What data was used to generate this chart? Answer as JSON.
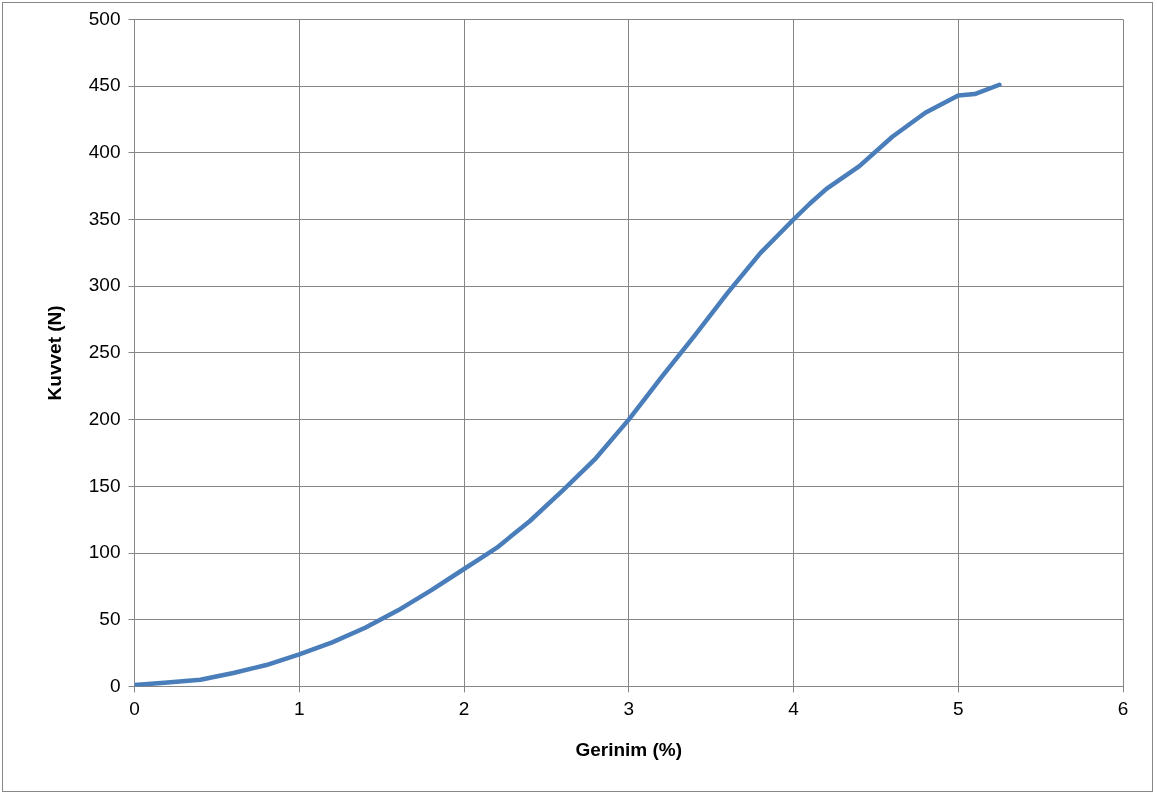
{
  "chart_data": {
    "type": "line",
    "xlabel": "Gerinim (%)",
    "ylabel": "Kuvvet (N)",
    "xlim": [
      0,
      6
    ],
    "xticks": [
      0,
      1,
      2,
      3,
      4,
      5,
      6
    ],
    "ylim": [
      0,
      500
    ],
    "yticks": [
      0,
      50,
      100,
      150,
      200,
      250,
      300,
      350,
      400,
      450,
      500
    ],
    "grid": true,
    "legend": false,
    "marker": "none",
    "line_style": "solid",
    "series": [
      {
        "color": "#4a7ebb",
        "x": [
          0,
          0.2,
          0.4,
          0.6,
          0.8,
          1.0,
          1.2,
          1.4,
          1.6,
          1.8,
          2.0,
          2.1,
          2.2,
          2.4,
          2.6,
          2.8,
          3.0,
          3.1,
          3.2,
          3.4,
          3.6,
          3.8,
          4.0,
          4.1,
          4.2,
          4.4,
          4.6,
          4.8,
          5.0,
          5.1,
          5.25
        ],
        "values": [
          1,
          3,
          5,
          10,
          16,
          24,
          33,
          44,
          57,
          72,
          88,
          96,
          104,
          124,
          147,
          171,
          200,
          216,
          232,
          263,
          295,
          325,
          350,
          362,
          373,
          390,
          412,
          430,
          443,
          444,
          451
        ]
      }
    ]
  }
}
